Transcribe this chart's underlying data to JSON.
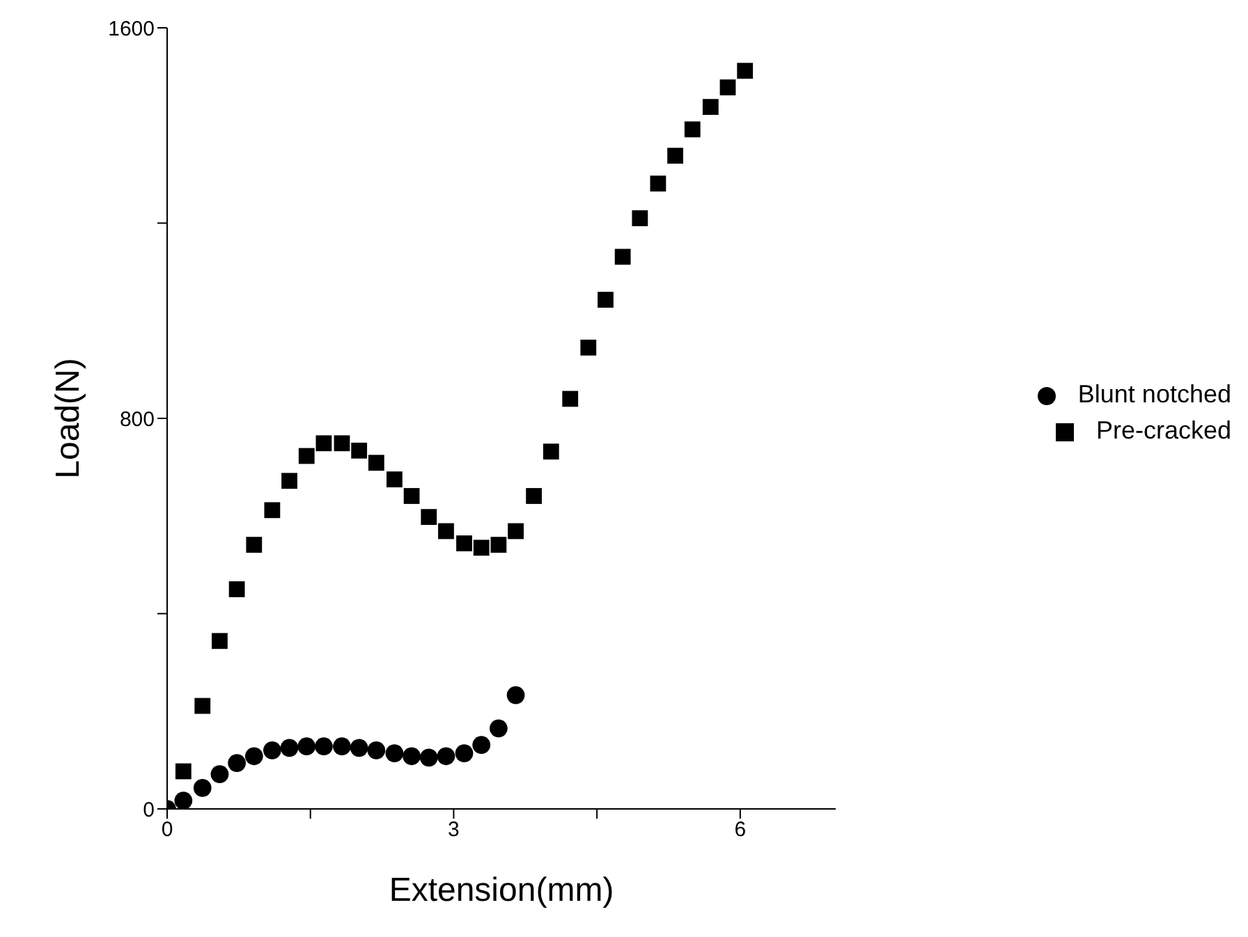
{
  "chart_data": {
    "type": "scatter",
    "xlabel": "Extension(mm)",
    "ylabel": "Load(N)",
    "xlim": [
      0,
      7
    ],
    "ylim": [
      0,
      1600
    ],
    "xticks": [
      0,
      {
        "value": 1.5,
        "label": null
      },
      3,
      {
        "value": 4.5,
        "label": null
      },
      6
    ],
    "yticks": [
      0,
      {
        "value": 400,
        "label": null
      },
      800,
      {
        "value": 1200,
        "label": null
      },
      1600
    ],
    "grid": false,
    "legend": "right",
    "series": [
      {
        "name": "Pre-cracked",
        "color": "#000000",
        "marker": "square",
        "x": [
          0.17,
          0.37,
          0.55,
          0.73,
          0.91,
          1.1,
          1.28,
          1.46,
          1.64,
          1.83,
          2.01,
          2.19,
          2.38,
          2.56,
          2.74,
          2.92,
          3.11,
          3.29,
          3.47,
          3.65,
          3.84,
          4.02,
          4.22,
          4.41,
          4.59,
          4.77,
          4.95,
          5.14,
          5.32,
          5.5,
          5.69,
          5.87,
          6.05
        ],
        "values": [
          77,
          211,
          344,
          450,
          541,
          612,
          672,
          723,
          749,
          749,
          734,
          709,
          675,
          641,
          598,
          569,
          544,
          535,
          541,
          569,
          641,
          732,
          840,
          945,
          1043,
          1131,
          1210,
          1281,
          1338,
          1392,
          1438,
          1478,
          1512
        ]
      },
      {
        "name": "Blunt notched",
        "color": "#000000",
        "marker": "circle",
        "x": [
          0,
          0.17,
          0.37,
          0.55,
          0.73,
          0.91,
          1.1,
          1.28,
          1.46,
          1.64,
          1.83,
          2.01,
          2.19,
          2.38,
          2.56,
          2.74,
          2.92,
          3.11,
          3.29,
          3.47,
          3.65
        ],
        "values": [
          0,
          17,
          43,
          71,
          94,
          108,
          120,
          125,
          128,
          128,
          128,
          125,
          120,
          114,
          108,
          105,
          108,
          114,
          131,
          165,
          233
        ]
      }
    ]
  }
}
